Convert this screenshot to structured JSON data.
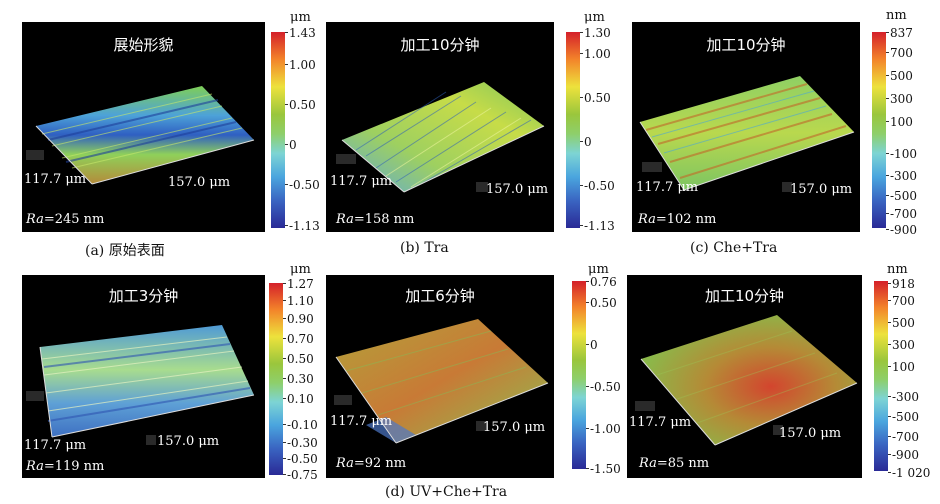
{
  "panels": [
    {
      "title": "展始形貌",
      "unit": "μm",
      "ticks": [
        "1.43",
        "1.00",
        "0.50",
        "0",
        "-0.50",
        "-1.13"
      ],
      "dim_y": "117.7 μm",
      "dim_x": "157.0 μm",
      "ra_label": "Ra",
      "ra_value": "=245 nm"
    },
    {
      "title": "加工10分钟",
      "unit": "μm",
      "ticks": [
        "1.30",
        "1.00",
        "0.50",
        "0",
        "-0.50",
        "-1.13"
      ],
      "dim_y": "117.7 μm",
      "dim_x": "157.0 μm",
      "ra_label": "Ra",
      "ra_value": "=158 nm"
    },
    {
      "title": "加工10分钟",
      "unit": "nm",
      "ticks": [
        "837",
        "700",
        "500",
        "300",
        "100",
        "-100",
        "-300",
        "-500",
        "-700",
        "-900"
      ],
      "dim_y": "117.7 μm",
      "dim_x": "157.0 μm",
      "ra_label": "Ra",
      "ra_value": "=102 nm"
    },
    {
      "title": "加工3分钟",
      "unit": "μm",
      "ticks": [
        "1.27",
        "1.10",
        "0.90",
        "0.70",
        "0.50",
        "0.30",
        "0.10",
        "-0.10",
        "-0.30",
        "-0.50",
        "-0.75"
      ],
      "dim_y": "117.7 μm",
      "dim_x": "157.0 μm",
      "ra_label": "Ra",
      "ra_value": "=119 nm"
    },
    {
      "title": "加工6分钟",
      "unit": "μm",
      "ticks": [
        "0.76",
        "0.50",
        "0",
        "-0.50",
        "-1.00",
        "-1.50"
      ],
      "dim_y": "117.7 μm",
      "dim_x": "157.0 μm",
      "ra_label": "Ra",
      "ra_value": "=92 nm"
    },
    {
      "title": "加工10分钟",
      "unit": "nm",
      "ticks": [
        "918",
        "700",
        "500",
        "300",
        "100",
        "-300",
        "-500",
        "-700",
        "-900",
        "-1 020"
      ],
      "dim_y": "117.7 μm",
      "dim_x": "157.0 μm",
      "ra_label": "Ra",
      "ra_value": "=85 nm"
    }
  ],
  "captions": [
    "(a) 原始表面",
    "(b) Tra",
    "(c) Che+Tra",
    "(d) UV+Che+Tra"
  ]
}
